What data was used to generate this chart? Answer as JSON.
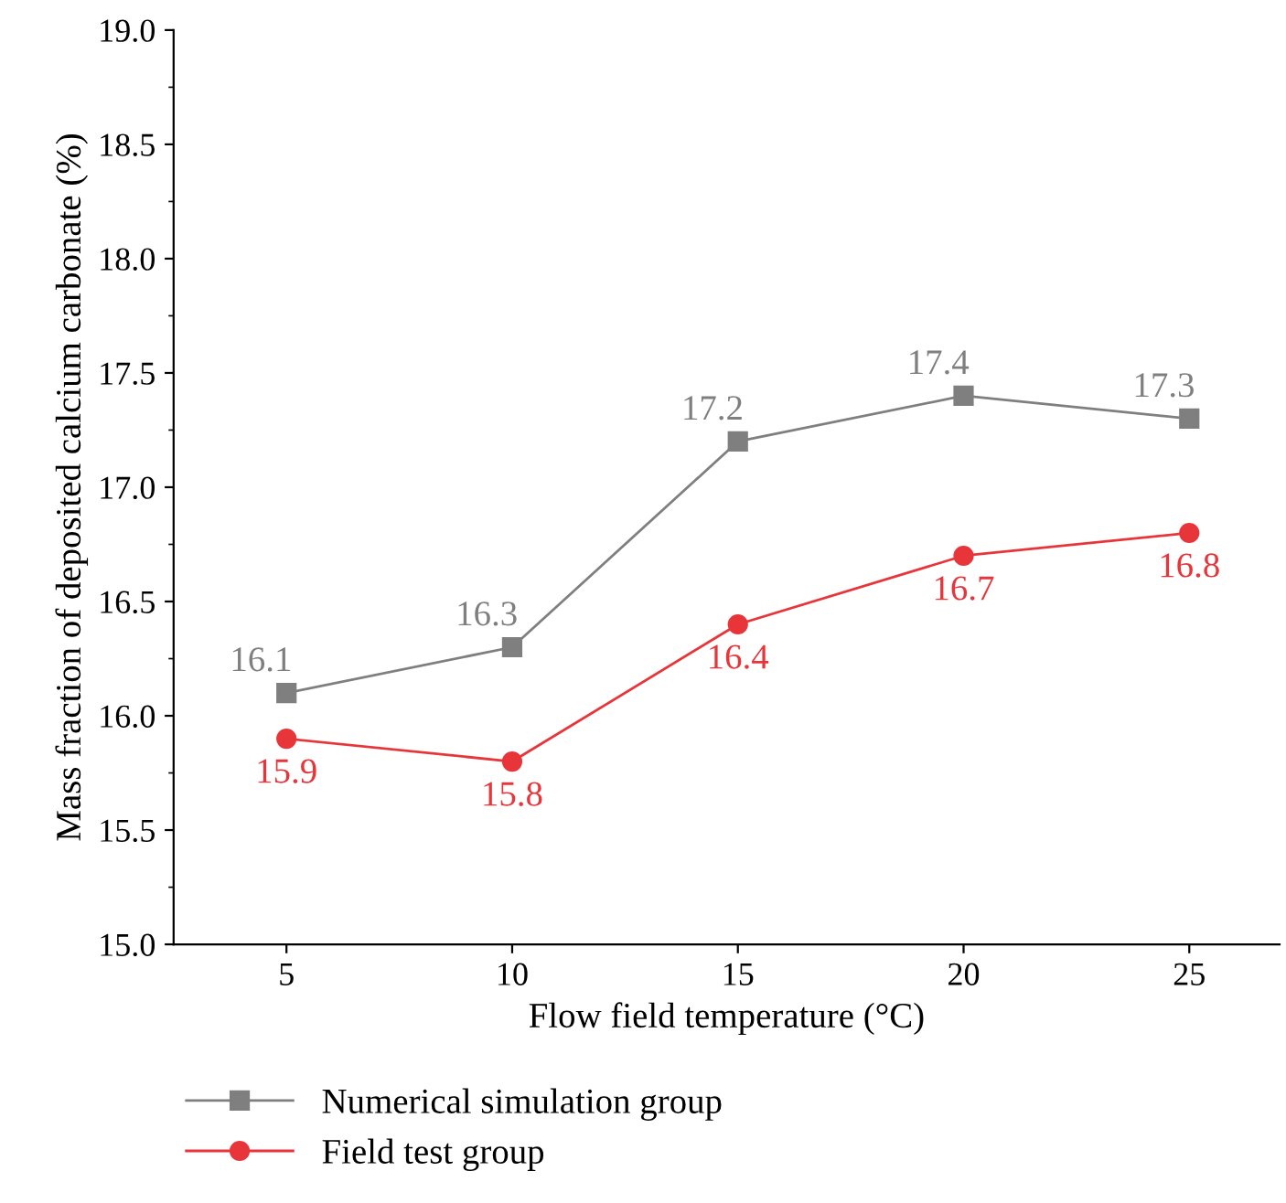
{
  "chart_data": {
    "type": "line",
    "xlabel": "Flow field temperature (°C)",
    "ylabel": "Mass fraction of deposited calcium carbonate (%)",
    "x": [
      5,
      10,
      15,
      20,
      25
    ],
    "series": [
      {
        "name": "Numerical simulation group",
        "color": "#7f7f7f",
        "values": [
          16.1,
          16.3,
          17.2,
          17.4,
          17.3
        ],
        "marker": "square"
      },
      {
        "name": "Field test group",
        "color": "#e8353a",
        "values": [
          15.9,
          15.8,
          16.4,
          16.7,
          16.8
        ],
        "marker": "circle"
      }
    ],
    "xlim": [
      2.5,
      27
    ],
    "xticks": [
      5,
      10,
      15,
      20,
      25
    ],
    "ylim": [
      15.0,
      19.0
    ],
    "yticks": [
      {
        "value": 15,
        "label": "15.0"
      },
      {
        "value": 15.5,
        "label": "15.5"
      },
      {
        "value": 16,
        "label": "16.0"
      },
      {
        "value": 16.5,
        "label": "16.5"
      },
      {
        "value": 17,
        "label": "17.0"
      },
      {
        "value": 17.5,
        "label": "17.5"
      },
      {
        "value": 18,
        "label": "18.0"
      },
      {
        "value": 18.5,
        "label": "18.5"
      },
      {
        "value": 19,
        "label": "19.0"
      }
    ],
    "data_labels": true,
    "grid": false,
    "legend": "bottom left",
    "line_style": "solid"
  }
}
